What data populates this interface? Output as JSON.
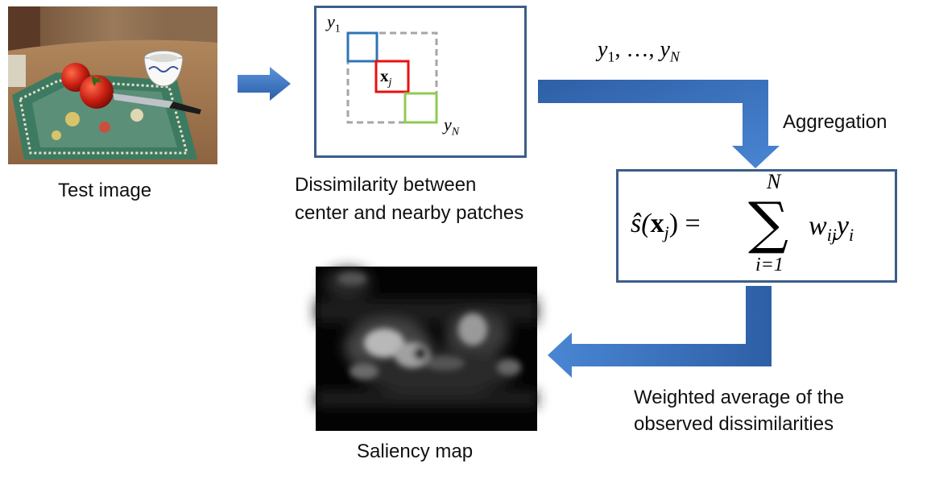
{
  "test_image": {
    "caption": "Test image"
  },
  "patches": {
    "label_first": "y",
    "label_first_sub": "1",
    "label_center": "x",
    "label_center_sub": "j",
    "label_last": "y",
    "label_last_sub": "N",
    "caption_line1": "Dissimilarity between",
    "caption_line2": "center and nearby patches",
    "colors": {
      "first": "#2e75b6",
      "center": "#e81010",
      "last": "#8fcb52",
      "neighborhood": "#a6a6a6"
    }
  },
  "sequence_label": {
    "y": "y",
    "sub1": "1",
    "sep": ", …, ",
    "sub2": "N"
  },
  "aggregation": {
    "label": "Aggregation"
  },
  "formula": {
    "lhs_s": "ŝ(",
    "lhs_x": "x",
    "lhs_sub": "j",
    "lhs_close": ") =",
    "sum_symbol": "∑",
    "upper": "N",
    "lower": "i=1",
    "term_w": "w",
    "term_w_sub": "ij",
    "term_y": "y",
    "term_y_sub": "i"
  },
  "saliency_map": {
    "caption": "Saliency map"
  },
  "weighted": {
    "line1": "Weighted average of the",
    "line2": "observed dissimilarities"
  },
  "colors": {
    "arrow": "#3a72c0",
    "box_border": "#3c5d8a"
  }
}
